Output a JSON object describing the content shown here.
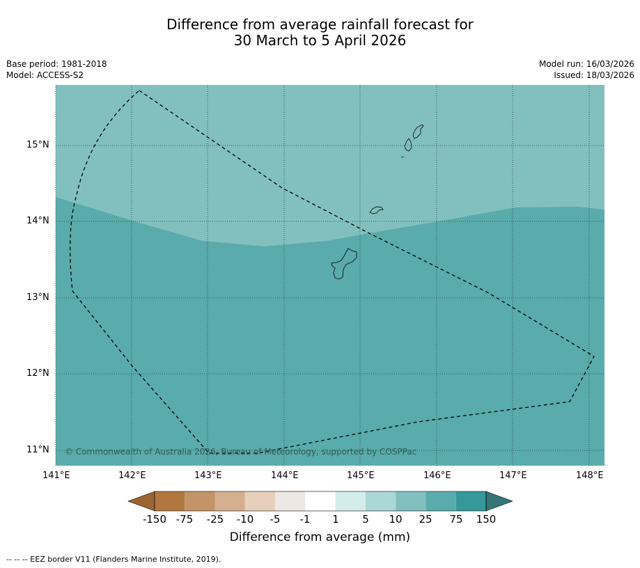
{
  "title": {
    "line1": "Difference from average rainfall forecast for",
    "line2": "30 March to 5 April 2026"
  },
  "meta": {
    "base_period": "Base period: 1981-2018",
    "model": "Model: ACCESS-S2",
    "model_run": "Model run: 16/03/2026",
    "issued": "Issued: 18/03/2026"
  },
  "axes": {
    "lat_labels": [
      "15°N",
      "14°N",
      "13°N",
      "12°N",
      "11°N"
    ],
    "lon_labels": [
      "141°E",
      "142°E",
      "143°E",
      "144°E",
      "145°E",
      "146°E",
      "147°E",
      "148°E"
    ]
  },
  "copyright": "© Commonwealth of Australia 2026, Bureau of Meteorology, supported by COSPPac",
  "colorbar": {
    "title": "Difference from average (mm)",
    "labels": [
      "-150",
      "-75",
      "-25",
      "-10",
      "-5",
      "-1",
      "1",
      "5",
      "10",
      "25",
      "75",
      "150"
    ],
    "colors": [
      "#9b6532",
      "#b07840",
      "#c29468",
      "#d4b08e",
      "#e6d0bd",
      "#ede8e4",
      "#ffffff",
      "#d4eceb",
      "#abd7d6",
      "#82c0bf",
      "#5aabab",
      "#35999a",
      "#347677"
    ]
  },
  "region_colors": {
    "light": "#82c0bf",
    "dark": "#5aabab"
  },
  "footnote": "--  --  -- EEZ border V11 (Flanders Marine Institute, 2019)."
}
